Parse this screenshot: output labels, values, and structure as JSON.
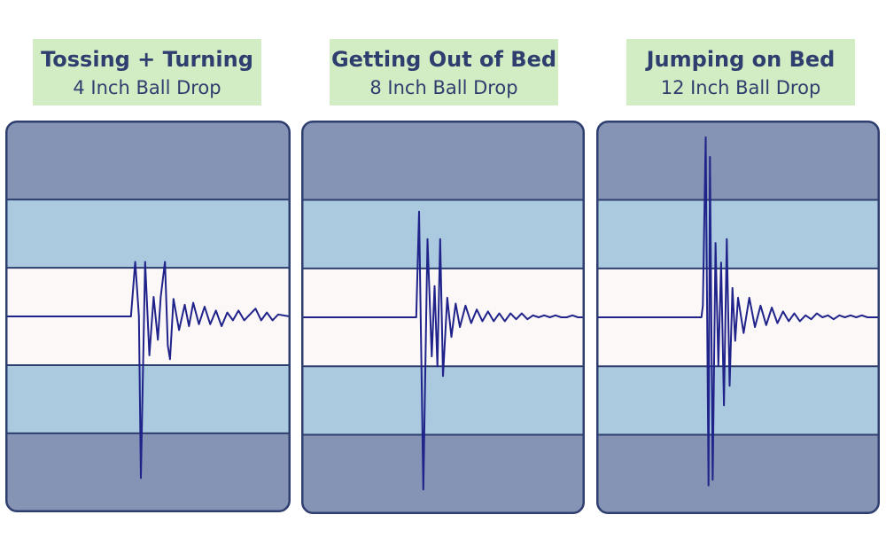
{
  "colors": {
    "outer_band": "#8593b5",
    "inner_band": "#abc9df",
    "center_band": "#fcf8f8",
    "border": "#2e3e6e",
    "trace": "#1f238a",
    "label_bg": "#d2ecc4",
    "label_text": "#2e3e6e"
  },
  "chart_data": [
    {
      "type": "line",
      "title": "Tossing + Turning",
      "subtitle": "4 Inch Ball Drop",
      "xlabel": "",
      "ylabel": "",
      "ylim": [
        -1,
        1
      ],
      "bands": [
        {
          "from": 0.6,
          "to": 1.0,
          "zone": "outer"
        },
        {
          "from": 0.25,
          "to": 0.6,
          "zone": "inner"
        },
        {
          "from": -0.25,
          "to": 0.25,
          "zone": "center"
        },
        {
          "from": -0.6,
          "to": -0.25,
          "zone": "inner"
        },
        {
          "from": -1.0,
          "to": -0.6,
          "zone": "outer"
        }
      ],
      "series": [
        {
          "x": [
            0,
            0.44,
            0.455,
            0.468,
            0.475,
            0.49,
            0.505,
            0.52,
            0.535,
            0.545,
            0.56,
            0.57,
            0.578,
            0.59,
            0.61,
            0.63,
            0.645,
            0.66,
            0.68,
            0.7,
            0.72,
            0.74,
            0.76,
            0.78,
            0.8,
            0.82,
            0.84,
            0.86,
            0.88,
            0.9,
            0.92,
            0.94,
            0.96,
            1.0
          ],
          "y": [
            0,
            0,
            0.28,
            0.0,
            -0.83,
            0.28,
            -0.2,
            0.1,
            -0.12,
            0.1,
            0.28,
            -0.15,
            -0.22,
            0.09,
            -0.07,
            0.06,
            -0.05,
            0.07,
            -0.04,
            0.05,
            -0.04,
            0.03,
            -0.05,
            0.02,
            -0.02,
            0.03,
            -0.02,
            0.01,
            0.04,
            -0.02,
            0.02,
            -0.02,
            0.01,
            0
          ]
        }
      ]
    },
    {
      "type": "line",
      "title": "Getting Out of Bed",
      "subtitle": "8 Inch Ball Drop",
      "xlabel": "",
      "ylabel": "",
      "ylim": [
        -1,
        1
      ],
      "bands": [
        {
          "from": 0.6,
          "to": 1.0,
          "zone": "outer"
        },
        {
          "from": 0.25,
          "to": 0.6,
          "zone": "inner"
        },
        {
          "from": -0.25,
          "to": 0.25,
          "zone": "center"
        },
        {
          "from": -0.6,
          "to": -0.25,
          "zone": "inner"
        },
        {
          "from": -1.0,
          "to": -0.6,
          "zone": "outer"
        }
      ],
      "series": [
        {
          "x": [
            0,
            0.405,
            0.415,
            0.43,
            0.445,
            0.46,
            0.47,
            0.48,
            0.49,
            0.5,
            0.515,
            0.53,
            0.545,
            0.56,
            0.58,
            0.6,
            0.62,
            0.64,
            0.66,
            0.68,
            0.7,
            0.72,
            0.74,
            0.76,
            0.78,
            0.8,
            0.82,
            0.84,
            0.86,
            0.88,
            0.9,
            0.92,
            0.94,
            0.96,
            0.98,
            1.0
          ],
          "y": [
            0,
            0,
            0.54,
            -0.88,
            0.4,
            -0.2,
            0.16,
            -0.25,
            0.4,
            -0.3,
            0.1,
            -0.1,
            0.07,
            -0.05,
            0.06,
            -0.03,
            0.04,
            -0.02,
            0.03,
            -0.02,
            0.02,
            -0.02,
            0.02,
            -0.01,
            0.02,
            -0.01,
            0.01,
            0,
            0.01,
            0,
            0.01,
            0,
            0,
            0.01,
            0,
            0
          ]
        }
      ]
    },
    {
      "type": "line",
      "title": "Jumping on Bed",
      "subtitle": "12 Inch Ball Drop",
      "xlabel": "",
      "ylabel": "",
      "ylim": [
        -1,
        1
      ],
      "bands": [
        {
          "from": 0.6,
          "to": 1.0,
          "zone": "outer"
        },
        {
          "from": 0.25,
          "to": 0.6,
          "zone": "inner"
        },
        {
          "from": -0.25,
          "to": 0.25,
          "zone": "center"
        },
        {
          "from": -0.6,
          "to": -0.25,
          "zone": "inner"
        },
        {
          "from": -1.0,
          "to": -0.6,
          "zone": "outer"
        }
      ],
      "series": [
        {
          "x": [
            0,
            0.37,
            0.375,
            0.385,
            0.395,
            0.4,
            0.41,
            0.42,
            0.43,
            0.44,
            0.45,
            0.46,
            0.47,
            0.48,
            0.49,
            0.5,
            0.52,
            0.54,
            0.56,
            0.58,
            0.6,
            0.62,
            0.64,
            0.66,
            0.68,
            0.7,
            0.72,
            0.74,
            0.76,
            0.78,
            0.8,
            0.82,
            0.84,
            0.86,
            0.88,
            0.9,
            0.92,
            0.94,
            0.96,
            0.98,
            1.0
          ],
          "y": [
            0,
            0,
            0.06,
            0.92,
            -0.86,
            0.82,
            -0.83,
            0.38,
            -0.25,
            0.28,
            -0.45,
            0.4,
            -0.35,
            0.15,
            -0.12,
            0.1,
            -0.08,
            0.1,
            -0.05,
            0.06,
            -0.04,
            0.05,
            -0.03,
            0.03,
            -0.02,
            0.02,
            -0.02,
            0.01,
            -0.01,
            0.02,
            0,
            0.01,
            -0.01,
            0.01,
            0,
            0.01,
            0,
            0.01,
            0,
            0,
            0
          ]
        }
      ]
    }
  ]
}
